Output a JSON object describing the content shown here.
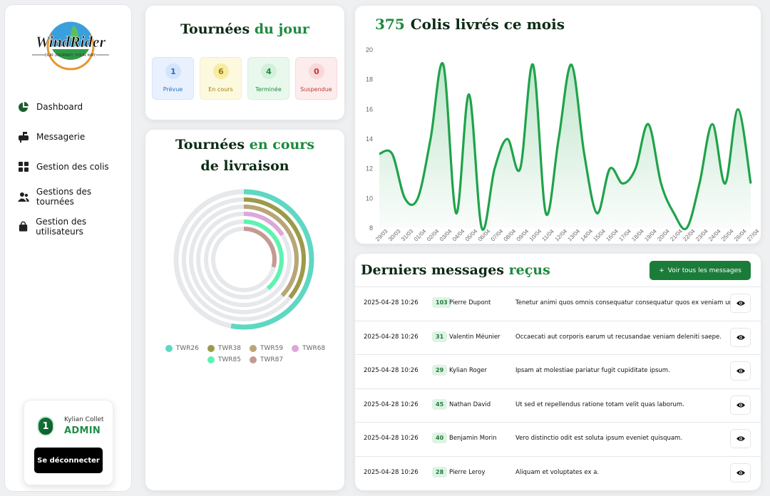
{
  "brand": {
    "name": "WindRider",
    "tagline": "OUR JOURNEY, YOUR WAY."
  },
  "sidebar": {
    "items": [
      {
        "label": "Dashboard",
        "icon": "pie-chart-icon"
      },
      {
        "label": "Messagerie",
        "icon": "mailbox-icon"
      },
      {
        "label": "Gestion des colis",
        "icon": "grid-icon"
      },
      {
        "label": "Gestions des tournées",
        "icon": "users-icon"
      },
      {
        "label": "Gestion des utilisateurs",
        "icon": "bag-icon"
      }
    ]
  },
  "user": {
    "avatar": "1",
    "name": "Kylian Collet",
    "role": "ADMIN",
    "logout_label": "Se déconnecter"
  },
  "jour": {
    "title_a": "Tournées ",
    "title_b": "du jour",
    "stats": [
      {
        "value": "1",
        "label": "Prévue"
      },
      {
        "value": "6",
        "label": "En cours"
      },
      {
        "value": "4",
        "label": "Terminée"
      },
      {
        "value": "0",
        "label": "Suspendue"
      }
    ]
  },
  "encours": {
    "title_a": "Tournées ",
    "title_b": "en cours",
    "title_c": "de livraison",
    "rings": [
      {
        "name": "TWR26",
        "color": "#5ed8c2",
        "fraction": 0.53
      },
      {
        "name": "TWR38",
        "color": "#9b9a4a",
        "fraction": 0.36
      },
      {
        "name": "TWR59",
        "color": "#b9a676",
        "fraction": 0.37
      },
      {
        "name": "TWR68",
        "color": "#dca7d9",
        "fraction": 0.16
      },
      {
        "name": "TWR85",
        "color": "#5ff2b0",
        "fraction": 0.39
      },
      {
        "name": "TWR87",
        "color": "#c49a93",
        "fraction": 0.29
      }
    ]
  },
  "chart": {
    "count": "375",
    "title": "Colis livrés ce mois"
  },
  "chart_data": {
    "type": "area",
    "x": [
      "29/03",
      "30/03",
      "31/03",
      "01/04",
      "02/04",
      "03/04",
      "04/04",
      "05/04",
      "06/04",
      "07/04",
      "08/04",
      "09/04",
      "10/04",
      "11/04",
      "12/04",
      "13/04",
      "14/04",
      "15/04",
      "16/04",
      "17/04",
      "18/04",
      "19/04",
      "20/04",
      "21/04",
      "22/04",
      "23/04",
      "24/04",
      "25/04",
      "26/04",
      "27/04"
    ],
    "values": [
      13,
      13,
      10,
      10,
      14,
      19,
      9,
      17,
      8,
      12,
      14,
      12,
      19,
      9,
      14,
      19,
      13,
      9,
      12,
      11,
      12,
      15,
      11,
      9,
      8,
      11,
      15,
      11,
      16,
      11
    ],
    "ylim": [
      8,
      20
    ],
    "yticks": [
      8,
      10,
      12,
      14,
      16,
      18,
      20
    ],
    "color": "#1fa34a",
    "grid": false
  },
  "messages": {
    "title_a": "Derniers messages ",
    "title_b": "reçus",
    "button": "Voir tous les messages",
    "rows": [
      {
        "date": "2025-04-28 10:26",
        "id": "103",
        "name": "Pierre Dupont",
        "text": "Tenetur animi quos omnis consequatur consequatur quos ex veniam un"
      },
      {
        "date": "2025-04-28 10:26",
        "id": "31",
        "name": "Valentin Méunier",
        "text": "Occaecati aut corporis earum ut recusandae veniam deleniti saepe."
      },
      {
        "date": "2025-04-28 10:26",
        "id": "29",
        "name": "Kylian Roger",
        "text": "Ipsam at molestiae pariatur fugit cupiditate ipsum."
      },
      {
        "date": "2025-04-28 10:26",
        "id": "45",
        "name": "Nathan David",
        "text": "Ut sed et repellendus ratione totam velit quas laborum."
      },
      {
        "date": "2025-04-28 10:26",
        "id": "40",
        "name": "Benjamin Morin",
        "text": "Vero distinctio odit est soluta ipsum eveniet quisquam."
      },
      {
        "date": "2025-04-28 10:26",
        "id": "28",
        "name": "Pierre Leroy",
        "text": "Aliquam et voluptates ex a."
      }
    ]
  }
}
